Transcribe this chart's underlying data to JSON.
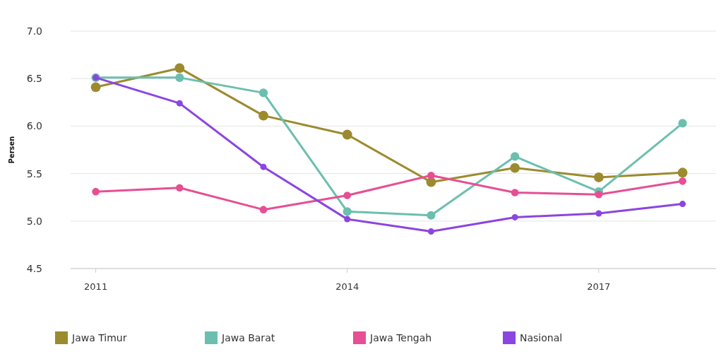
{
  "chart_data": {
    "type": "line",
    "ylabel": "Persen",
    "x": [
      2011,
      2012,
      2013,
      2014,
      2015,
      2016,
      2017,
      2018
    ],
    "xlim": [
      2010.7,
      2018.4
    ],
    "xticks": [
      2011,
      2014,
      2017
    ],
    "ylim": [
      4.5,
      7.0
    ],
    "yticks": [
      {
        "value": 4.5,
        "label": "4.5"
      },
      {
        "value": 5.0,
        "label": "5.0"
      },
      {
        "value": 5.5,
        "label": "5.5"
      },
      {
        "value": 6.0,
        "label": "6.0"
      },
      {
        "value": 6.5,
        "label": "6.5"
      },
      {
        "value": 7.0,
        "label": "7.0"
      }
    ],
    "grid": "y",
    "legend": "bottom",
    "marker": "circle",
    "series": [
      {
        "name": "Jawa Timur",
        "color": "#9c8a2e",
        "values": [
          6.41,
          6.61,
          6.11,
          5.91,
          5.41,
          5.56,
          5.46,
          5.51
        ]
      },
      {
        "name": "Jawa Barat",
        "color": "#6cbfae",
        "values": [
          6.51,
          6.51,
          6.35,
          5.1,
          5.06,
          5.68,
          5.31,
          6.03
        ]
      },
      {
        "name": "Jawa Tengah",
        "color": "#e64f93",
        "values": [
          5.31,
          5.35,
          5.12,
          5.27,
          5.48,
          5.3,
          5.28,
          5.42
        ]
      },
      {
        "name": "Nasional",
        "color": "#8b45e0",
        "values": [
          6.51,
          6.24,
          5.57,
          5.02,
          4.89,
          5.04,
          5.08,
          5.18
        ]
      }
    ]
  }
}
